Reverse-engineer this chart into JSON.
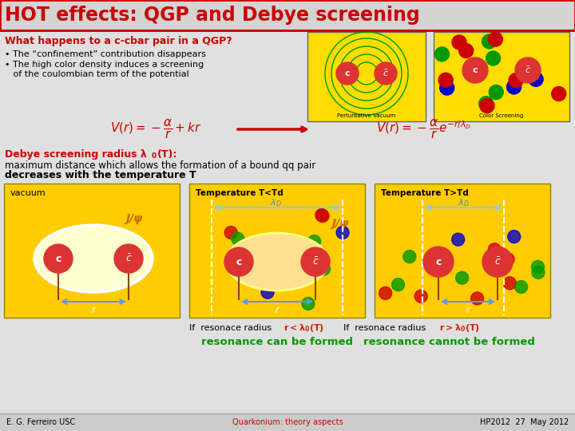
{
  "title": "HOT effects: QGP and Debye screening",
  "title_color": "#cc0000",
  "title_bg": "#d4d4d4",
  "title_border": "#cc0000",
  "bg_color": "#e0e0e0",
  "question": "What happens to a c-cbar pair in a QGP?",
  "bullet1": "• The “confinement” contribution disappears",
  "bullet2": "• The high color density induces a screening",
  "bullet3": "   of the coulombian term of the potential",
  "debye_text": "Debye screening radius λ₀(T):",
  "max_dist": "maximum distance which allows the formation of a bound qq pair",
  "decreases": "decreases with the temperature T",
  "vacuum_label": "vacuum",
  "temp1_label": "Temperature T<Td",
  "temp2_label": "Temperature T>Td",
  "jpsylabel": "J/ψ",
  "footer_left": "E. G. Ferreiro USC",
  "footer_mid": "Quarkonium: theory aspects",
  "footer_right": "HP2012  27  May 2012",
  "resonance_can": "resonance can be formed",
  "resonance_cannot": "resonance cannot be formed",
  "yellow": "#ffcc00",
  "red_c": "#dd3333",
  "colors_qgp": [
    "#cc0000",
    "#0000cc",
    "#009900"
  ]
}
